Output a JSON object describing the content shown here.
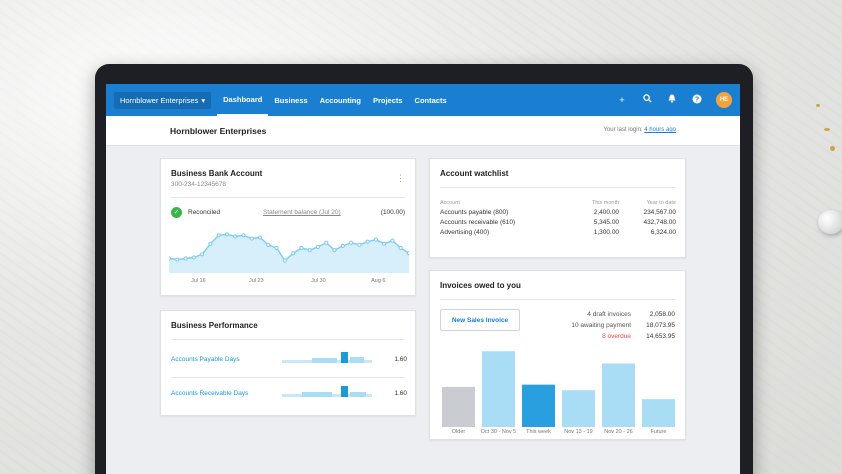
{
  "nav": {
    "org": "Hornblower Enterprises",
    "items": [
      "Dashboard",
      "Business",
      "Accounting",
      "Projects",
      "Contacts"
    ],
    "active": "Dashboard",
    "icons": [
      "plus-icon",
      "search-icon",
      "bell-icon",
      "help-icon"
    ],
    "avatar": "HE"
  },
  "header": {
    "title": "Hornblower Enterprises",
    "last_login_prefix": "Your last login:",
    "last_login_link": "4 hours ago"
  },
  "bank": {
    "title": "Business Bank Account",
    "account_number": "300-234-12345678",
    "status": "Reconciled",
    "statement_label": "Statement balance (Jul 20)",
    "statement_value": "(100.00)",
    "color": "#7ccbf0"
  },
  "chart_data": {
    "type": "area",
    "x_ticks": [
      "Jul 16",
      "Jul 23",
      "Jul 30",
      "Aug 6"
    ],
    "values": [
      30,
      29,
      30,
      31,
      34,
      44,
      52,
      53,
      51,
      52,
      49,
      50,
      43,
      40,
      28,
      35,
      40,
      38,
      41,
      45,
      38,
      42,
      45,
      43,
      46,
      48,
      44,
      47,
      40,
      35
    ]
  },
  "performance": {
    "title": "Business Performance",
    "rows": [
      {
        "label": "Accounts Payable Days",
        "value": "1.60"
      },
      {
        "label": "Accounts Receivable Days",
        "value": "1.60"
      }
    ]
  },
  "watchlist": {
    "title": "Account watchlist",
    "columns": [
      "Account",
      "This month",
      "Year to date"
    ],
    "rows": [
      [
        "Accounts payable (800)",
        "2,400.00",
        "234,567.00"
      ],
      [
        "Accounts receivable (610)",
        "5,345.00",
        "432,748.00"
      ],
      [
        "Advertising (400)",
        "1,300.00",
        "6,324.00"
      ]
    ]
  },
  "invoices": {
    "title": "Invoices owed to you",
    "new_button": "New Sales Invoice",
    "stats": [
      {
        "label": "4 draft invoices",
        "amount": "2,058.00",
        "kind": "normal"
      },
      {
        "label": "10 awaiting payment",
        "amount": "18,073.95",
        "kind": "normal"
      },
      {
        "label": "8 overdue",
        "amount": "14,653.95",
        "kind": "overdue"
      }
    ],
    "bars": [
      {
        "label": "Older",
        "value": 36,
        "color": "#c9cdd2"
      },
      {
        "label": "Oct 30 - Nov 5",
        "value": 68,
        "color": "#a9dcf5"
      },
      {
        "label": "This week",
        "value": 38,
        "color": "#2a9fe0"
      },
      {
        "label": "Nov 13 - 19",
        "value": 33,
        "color": "#a9dcf5"
      },
      {
        "label": "Nov 20 - 26",
        "value": 57,
        "color": "#a9dcf5"
      },
      {
        "label": "Future",
        "value": 25,
        "color": "#a9dcf5"
      }
    ]
  }
}
